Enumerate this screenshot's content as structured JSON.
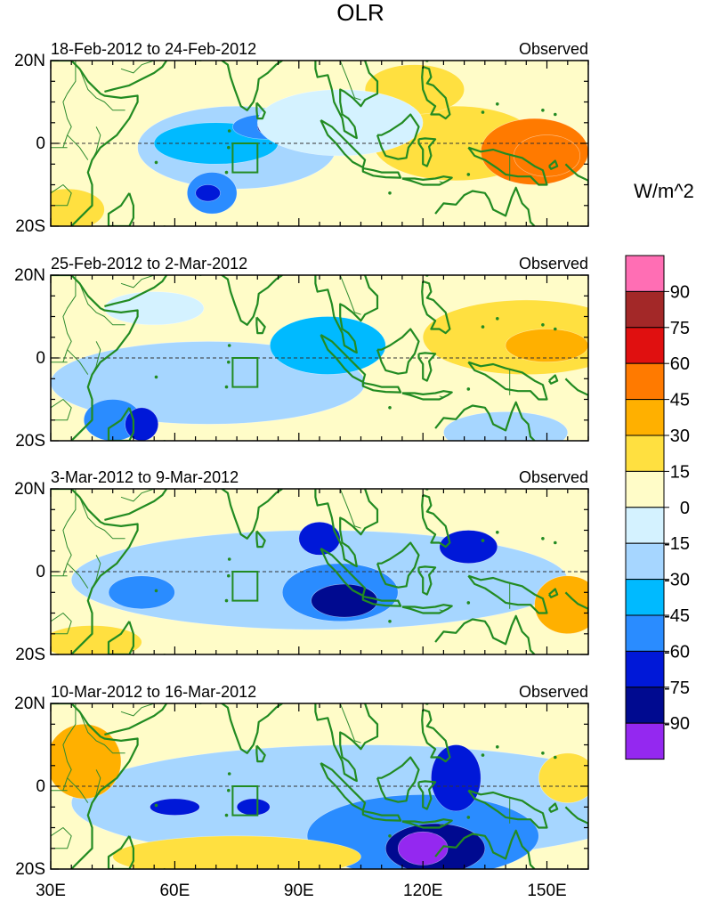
{
  "chart_data": {
    "type": "heatmap",
    "title": "OLR",
    "units": "W/m^2",
    "x_axis": {
      "range": [
        30,
        160
      ],
      "ticks": [
        30,
        60,
        90,
        120,
        150
      ],
      "tick_labels": [
        "30E",
        "60E",
        "90E",
        "120E",
        "150E"
      ]
    },
    "y_axis": {
      "range": [
        -20,
        20
      ],
      "ticks": [
        20,
        0,
        -20
      ],
      "tick_labels": [
        "20N",
        "0",
        "20S"
      ]
    },
    "box_region": {
      "lon": [
        74,
        80
      ],
      "lat": [
        -7,
        0
      ]
    },
    "colorbar": {
      "labels": [
        "90",
        "75",
        "60",
        "45",
        "30",
        "15",
        "0",
        "-15",
        "-30",
        "-45",
        "-60",
        "-75",
        "-90"
      ],
      "colors": [
        "#ff6eb4",
        "#a32828",
        "#e01010",
        "#ff7a00",
        "#ffb000",
        "#ffe040",
        "#fffcc8",
        "#d4f2ff",
        "#a6d6ff",
        "#00baff",
        "#2a8cff",
        "#0018d8",
        "#000a90",
        "#9428f0"
      ]
    },
    "panels": [
      {
        "period": "18-Feb-2012 to 24-Feb-2012",
        "label": "Observed",
        "anomalies": [
          {
            "lon": 128,
            "lat": 0,
            "rx": 20,
            "ry": 9,
            "v": 22
          },
          {
            "lon": 147,
            "lat": -2,
            "rx": 13,
            "ry": 8,
            "v": 45
          },
          {
            "lon": 150,
            "lat": -3,
            "rx": 8,
            "ry": 5,
            "v": 52
          },
          {
            "lon": 118,
            "lat": 13,
            "rx": 12,
            "ry": 6,
            "v": 18
          },
          {
            "lon": 34,
            "lat": -16,
            "rx": 9,
            "ry": 5,
            "v": 22
          },
          {
            "lon": 75,
            "lat": -1,
            "rx": 24,
            "ry": 10,
            "v": -30
          },
          {
            "lon": 70,
            "lat": 0,
            "rx": 15,
            "ry": 5,
            "v": -45
          },
          {
            "lon": 82,
            "lat": 4,
            "rx": 8,
            "ry": 3,
            "v": -60
          },
          {
            "lon": 83,
            "lat": 4,
            "rx": 3,
            "ry": 2,
            "v": -78
          },
          {
            "lon": 69,
            "lat": -12,
            "rx": 6,
            "ry": 5,
            "v": -50
          },
          {
            "lon": 68,
            "lat": -12,
            "rx": 3,
            "ry": 2,
            "v": -65
          },
          {
            "lon": 100,
            "lat": 5,
            "rx": 20,
            "ry": 8,
            "v": -15
          }
        ]
      },
      {
        "period": "25-Feb-2012 to 2-Mar-2012",
        "label": "Observed",
        "anomalies": [
          {
            "lon": 145,
            "lat": 5,
            "rx": 25,
            "ry": 9,
            "v": 20
          },
          {
            "lon": 150,
            "lat": 3,
            "rx": 10,
            "ry": 4,
            "v": 40
          },
          {
            "lon": 68,
            "lat": -6,
            "rx": 38,
            "ry": 10,
            "v": -25
          },
          {
            "lon": 45,
            "lat": -15,
            "rx": 7,
            "ry": 5,
            "v": -60
          },
          {
            "lon": 52,
            "lat": -16,
            "rx": 4,
            "ry": 4,
            "v": -75
          },
          {
            "lon": 97,
            "lat": 3,
            "rx": 14,
            "ry": 7,
            "v": -35
          },
          {
            "lon": 140,
            "lat": -18,
            "rx": 15,
            "ry": 5,
            "v": -30
          },
          {
            "lon": 55,
            "lat": 12,
            "rx": 12,
            "ry": 4,
            "v": -15
          }
        ]
      },
      {
        "period": "3-Mar-2012 to 9-Mar-2012",
        "label": "Observed",
        "anomalies": [
          {
            "lon": 95,
            "lat": -2,
            "rx": 60,
            "ry": 12,
            "v": -30
          },
          {
            "lon": 100,
            "lat": -5,
            "rx": 14,
            "ry": 7,
            "v": -60
          },
          {
            "lon": 101,
            "lat": -7,
            "rx": 8,
            "ry": 4,
            "v": -80
          },
          {
            "lon": 95,
            "lat": 8,
            "rx": 5,
            "ry": 4,
            "v": -65
          },
          {
            "lon": 131,
            "lat": 6,
            "rx": 7,
            "ry": 4,
            "v": -75
          },
          {
            "lon": 52,
            "lat": -5,
            "rx": 8,
            "ry": 4,
            "v": -55
          },
          {
            "lon": 155,
            "lat": -8,
            "rx": 8,
            "ry": 7,
            "v": 35
          },
          {
            "lon": 40,
            "lat": -17,
            "rx": 12,
            "ry": 4,
            "v": 25
          }
        ]
      },
      {
        "period": "10-Mar-2012 to 16-Mar-2012",
        "label": "Observed",
        "anomalies": [
          {
            "lon": 105,
            "lat": -4,
            "rx": 70,
            "ry": 14,
            "v": -30
          },
          {
            "lon": 120,
            "lat": -12,
            "rx": 28,
            "ry": 10,
            "v": -50
          },
          {
            "lon": 123,
            "lat": -15,
            "rx": 12,
            "ry": 6,
            "v": -80
          },
          {
            "lon": 120,
            "lat": -15,
            "rx": 6,
            "ry": 4,
            "v": -95
          },
          {
            "lon": 128,
            "lat": 2,
            "rx": 6,
            "ry": 8,
            "v": -65
          },
          {
            "lon": 60,
            "lat": -5,
            "rx": 6,
            "ry": 2,
            "v": -70
          },
          {
            "lon": 79,
            "lat": -5,
            "rx": 4,
            "ry": 2,
            "v": -70
          },
          {
            "lon": 38,
            "lat": 6,
            "rx": 9,
            "ry": 9,
            "v": 30
          },
          {
            "lon": 155,
            "lat": 2,
            "rx": 7,
            "ry": 6,
            "v": 20
          },
          {
            "lon": 75,
            "lat": -17,
            "rx": 30,
            "ry": 5,
            "v": 20
          }
        ]
      }
    ]
  }
}
